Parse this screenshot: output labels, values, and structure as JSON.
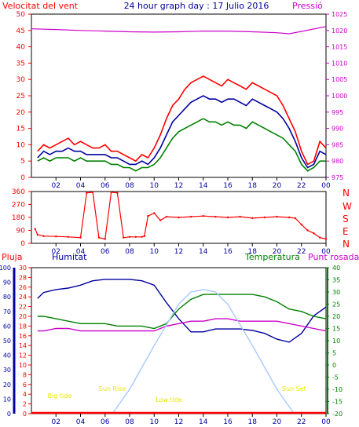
{
  "header": {
    "left_title": "Velocitat del vent",
    "center_title": "24 hour graph day : 17 Julio 2016",
    "right_title": "Pressió"
  },
  "compass": [
    "N",
    "W",
    "S",
    "E",
    "N"
  ],
  "bottom_labels": {
    "pluja": "Pluja",
    "humitat": "Humitat",
    "temperatura": "Temperatura",
    "punt_rosada": "Punt rosada"
  },
  "colors": {
    "red": "#ff0000",
    "blue": "#0000a0",
    "green": "#008000",
    "magenta": "#cc00cc",
    "sun": "#a8c8ff",
    "yellow": "#e8e800",
    "axis": "#000000",
    "grid": "#c8c8c8"
  },
  "chart_data": [
    {
      "type": "line",
      "id": "wind",
      "x_ticks": [
        "02",
        "04",
        "06",
        "08",
        "10",
        "12",
        "14",
        "16",
        "18",
        "20",
        "22",
        "00"
      ],
      "y_left_ticks": [
        0,
        5,
        10,
        15,
        20,
        25,
        30,
        35,
        40,
        45,
        50
      ],
      "y_left_range": [
        0,
        50
      ],
      "y_right_ticks": [
        975,
        980,
        985,
        990,
        995,
        1000,
        1005,
        1010,
        1015,
        1020,
        1025
      ],
      "y_right_range": [
        975,
        1025
      ],
      "series": [
        {
          "id": "gust",
          "color": "#ff0000",
          "axis": "left",
          "x": [
            0.5,
            1,
            1.5,
            2,
            2.5,
            3,
            3.5,
            4,
            4.5,
            5,
            5.5,
            6,
            6.5,
            7,
            7.5,
            8,
            8.5,
            9,
            9.5,
            10,
            10.5,
            11,
            11.5,
            12,
            12.5,
            13,
            13.5,
            14,
            14.5,
            15,
            15.5,
            16,
            16.5,
            17,
            17.5,
            18,
            18.5,
            19,
            19.5,
            20,
            20.5,
            21,
            21.5,
            22,
            22.5,
            23,
            23.5,
            24
          ],
          "y": [
            8,
            10,
            9,
            10,
            11,
            12,
            10,
            11,
            10,
            9,
            9,
            10,
            8,
            8,
            7,
            6,
            5,
            7,
            6,
            9,
            13,
            18,
            22,
            24,
            27,
            29,
            30,
            31,
            30,
            29,
            28,
            30,
            29,
            28,
            27,
            29,
            28,
            27,
            26,
            25,
            22,
            18,
            14,
            8,
            4,
            5,
            11,
            9
          ]
        },
        {
          "id": "average",
          "color": "#0000a0",
          "axis": "left",
          "x": [
            0.5,
            1,
            1.5,
            2,
            2.5,
            3,
            3.5,
            4,
            4.5,
            5,
            5.5,
            6,
            6.5,
            7,
            7.5,
            8,
            8.5,
            9,
            9.5,
            10,
            10.5,
            11,
            11.5,
            12,
            12.5,
            13,
            13.5,
            14,
            14.5,
            15,
            15.5,
            16,
            16.5,
            17,
            17.5,
            18,
            18.5,
            19,
            19.5,
            20,
            20.5,
            21,
            21.5,
            22,
            22.5,
            23,
            23.5,
            24
          ],
          "y": [
            6,
            8,
            7,
            8,
            8,
            9,
            8,
            8,
            7,
            7,
            7,
            7,
            6,
            6,
            5,
            4,
            4,
            5,
            4,
            6,
            9,
            13,
            17,
            19,
            21,
            23,
            24,
            25,
            24,
            24,
            23,
            24,
            24,
            23,
            22,
            24,
            23,
            22,
            21,
            20,
            18,
            15,
            11,
            6,
            3,
            4,
            8,
            7
          ]
        },
        {
          "id": "speed",
          "color": "#008000",
          "axis": "left",
          "x": [
            0.5,
            1,
            1.5,
            2,
            2.5,
            3,
            3.5,
            4,
            4.5,
            5,
            5.5,
            6,
            6.5,
            7,
            7.5,
            8,
            8.5,
            9,
            9.5,
            10,
            10.5,
            11,
            11.5,
            12,
            12.5,
            13,
            13.5,
            14,
            14.5,
            15,
            15.5,
            16,
            16.5,
            17,
            17.5,
            18,
            18.5,
            19,
            19.5,
            20,
            20.5,
            21,
            21.5,
            22,
            22.5,
            23,
            23.5,
            24
          ],
          "y": [
            5,
            6,
            5,
            6,
            6,
            6,
            5,
            6,
            5,
            5,
            5,
            5,
            4,
            4,
            3,
            3,
            2,
            3,
            3,
            4,
            6,
            9,
            12,
            14,
            15,
            16,
            17,
            18,
            17,
            17,
            16,
            17,
            16,
            16,
            15,
            17,
            16,
            15,
            14,
            13,
            12,
            10,
            8,
            4,
            2,
            3,
            5,
            5
          ]
        },
        {
          "id": "pressure",
          "color": "#cc00cc",
          "axis": "right",
          "x": [
            0,
            2,
            4,
            6,
            8,
            10,
            12,
            14,
            16,
            18,
            20,
            21,
            22,
            24
          ],
          "y": [
            1020.5,
            1020.3,
            1020,
            1019.8,
            1019.6,
            1019.5,
            1019.6,
            1019.8,
            1019.8,
            1019.6,
            1019.3,
            1019.0,
            1019.7,
            1021.2
          ]
        }
      ]
    },
    {
      "type": "scatter",
      "id": "direction",
      "y_ticks": [
        0,
        90,
        180,
        270,
        360
      ],
      "y_range": [
        0,
        360
      ],
      "x_ticks": [
        "02",
        "04",
        "06",
        "08",
        "10",
        "12",
        "14",
        "16",
        "18",
        "20",
        "22",
        "00"
      ],
      "series": [
        {
          "id": "direction",
          "color": "#ff0000",
          "x": [
            0.3,
            0.5,
            1,
            2,
            3,
            4,
            4.5,
            5,
            5.5,
            6,
            6.5,
            7,
            7.5,
            8,
            8.5,
            9,
            9.2,
            9.5,
            10,
            10.5,
            11,
            12,
            13,
            14,
            15,
            16,
            17,
            18,
            19,
            20,
            21,
            21.5,
            22,
            22.5,
            23,
            23.5,
            24
          ],
          "y": [
            100,
            60,
            50,
            48,
            45,
            40,
            350,
            355,
            40,
            30,
            355,
            350,
            40,
            45,
            45,
            45,
            50,
            190,
            210,
            160,
            185,
            180,
            185,
            190,
            185,
            180,
            185,
            175,
            180,
            185,
            180,
            175,
            130,
            90,
            70,
            40,
            30
          ]
        }
      ]
    },
    {
      "type": "line",
      "id": "weather",
      "y_axis_pluja_ticks": [
        0,
        10,
        20,
        30,
        40,
        50,
        60,
        70,
        80,
        90,
        100
      ],
      "y_axis_humitat_ticks": [
        0,
        2,
        4,
        6,
        8,
        10,
        12,
        14,
        16,
        18,
        20,
        22,
        24,
        26,
        28,
        30
      ],
      "y_right_ticks": [
        -20,
        -15,
        -10,
        -5,
        0,
        5,
        10,
        15,
        20,
        25,
        30,
        35,
        40
      ],
      "y_right_range": [
        -20,
        40
      ],
      "x_ticks": [
        "02",
        "04",
        "06",
        "08",
        "10",
        "12",
        "14",
        "16",
        "18",
        "20",
        "22",
        "00"
      ],
      "annotations": [
        {
          "text": "Sun Rise",
          "x": 6.6,
          "color": "#e8e800"
        },
        {
          "text": "Sun Set",
          "x": 21.4,
          "color": "#e8e800"
        },
        {
          "text": "Low tide",
          "x": 11.2,
          "color": "#e8e800"
        },
        {
          "text": "Big tide",
          "x": 2.3,
          "color": "#e8e800"
        }
      ],
      "series": [
        {
          "id": "humidity",
          "color": "#0000a0",
          "axis": "humitat",
          "x": [
            0.5,
            1,
            2,
            3,
            4,
            5,
            6,
            7,
            8,
            9,
            10,
            11,
            12,
            13,
            14,
            15,
            16,
            17,
            18,
            19,
            20,
            21,
            22,
            23,
            24
          ],
          "y": [
            79,
            83,
            85,
            86,
            88,
            91,
            92,
            92,
            92,
            91,
            88,
            76,
            65,
            56,
            56,
            58,
            58,
            58,
            57,
            55,
            51,
            49,
            55,
            67,
            73
          ]
        },
        {
          "id": "temperature",
          "color": "#008000",
          "axis": "right",
          "x": [
            0.5,
            1,
            2,
            3,
            4,
            5,
            6,
            7,
            8,
            9,
            10,
            11,
            12,
            13,
            14,
            15,
            16,
            17,
            18,
            19,
            20,
            21,
            22,
            23,
            24
          ],
          "y": [
            20,
            20,
            19,
            18,
            17,
            17,
            17,
            16,
            16,
            16,
            15,
            17,
            23,
            27,
            29,
            29,
            29,
            29,
            29,
            28,
            26,
            23,
            22,
            20,
            19
          ]
        },
        {
          "id": "dewpoint",
          "color": "#cc00cc",
          "axis": "right",
          "x": [
            0.5,
            1,
            2,
            3,
            4,
            5,
            6,
            7,
            8,
            9,
            10,
            11,
            12,
            13,
            14,
            15,
            16,
            17,
            18,
            19,
            20,
            21,
            22,
            23,
            24
          ],
          "y": [
            14,
            14,
            15,
            15,
            14,
            14,
            14,
            14,
            14,
            14,
            14,
            16,
            17,
            18,
            18,
            19,
            19,
            18,
            18,
            18,
            18,
            17,
            16,
            15,
            14
          ]
        },
        {
          "id": "sun",
          "color": "#a8c8ff",
          "axis": "right",
          "x": [
            6.6,
            8,
            10,
            12,
            13,
            14,
            15,
            16,
            18,
            20,
            21.4
          ],
          "y": [
            -20,
            -10,
            8,
            25,
            30,
            31,
            30,
            25,
            8,
            -10,
            -20
          ]
        },
        {
          "id": "rain",
          "color": "#ff0000",
          "axis": "pluja",
          "x": [
            0,
            24
          ],
          "y": [
            0,
            0
          ]
        }
      ]
    }
  ]
}
